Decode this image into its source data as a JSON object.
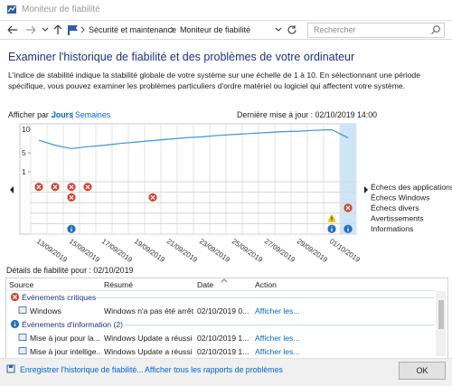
{
  "window": {
    "title": "Moniteur de fiabilité"
  },
  "nav": {
    "breadcrumb": [
      "Sécurité et maintenance",
      "Moniteur de fiabilité"
    ],
    "search_placeholder": "Rechercher"
  },
  "heading": "Examiner l'historique de fiabilité et des problèmes de votre ordinateur",
  "description": "L'indice de stabilité indique la stabilité globale de votre système sur une échelle de 1 à 10. En sélectionnant une période spécifique, vous pouvez examiner les problèmes particuliers d'ordre matériel ou logiciel qui affectent votre système.",
  "view": {
    "label": "Afficher par :",
    "options": [
      "Jours",
      "Semaines"
    ],
    "separator": "|"
  },
  "last_update": "Dernière mise à jour : 02/10/2019 14:00",
  "chart": {
    "ylim": [
      1,
      10
    ],
    "yticks": [
      10,
      5,
      1
    ],
    "days": [
      "13/09/2019",
      null,
      "15/09/2019",
      null,
      "17/09/2019",
      null,
      "19/09/2019",
      null,
      "21/09/2019",
      null,
      "23/09/2019",
      null,
      "25/09/2019",
      null,
      "27/09/2019",
      null,
      "29/09/2019",
      null,
      "01/10/2019",
      null
    ],
    "stability": [
      7.7,
      6.6,
      5.9,
      6.3,
      6.6,
      7.0,
      7.3,
      7.6,
      7.9,
      8.2,
      8.4,
      8.7,
      8.9,
      9.1,
      9.3,
      9.5,
      9.6,
      9.8,
      9.9,
      8.2
    ],
    "rows": [
      {
        "label": "Échecs des applications",
        "icon": "error",
        "counts": [
          1,
          1,
          1,
          1,
          0,
          0,
          0,
          0,
          0,
          0,
          0,
          0,
          0,
          0,
          0,
          0,
          0,
          0,
          0,
          0
        ]
      },
      {
        "label": "Échecs Windows",
        "icon": "error",
        "counts": [
          0,
          0,
          1,
          0,
          0,
          0,
          0,
          1,
          0,
          0,
          0,
          0,
          0,
          0,
          0,
          0,
          0,
          0,
          0,
          0
        ]
      },
      {
        "label": "Échecs divers",
        "icon": "error",
        "counts": [
          0,
          0,
          0,
          0,
          0,
          0,
          0,
          0,
          0,
          0,
          0,
          0,
          0,
          0,
          0,
          0,
          0,
          0,
          0,
          1
        ]
      },
      {
        "label": "Avertissements",
        "icon": "warning",
        "counts": [
          0,
          0,
          0,
          0,
          0,
          0,
          0,
          0,
          0,
          0,
          0,
          0,
          0,
          0,
          0,
          0,
          0,
          0,
          1,
          0
        ]
      },
      {
        "label": "Informations",
        "icon": "info",
        "counts": [
          0,
          0,
          1,
          0,
          0,
          0,
          0,
          0,
          0,
          0,
          0,
          0,
          0,
          0,
          0,
          0,
          0,
          0,
          1,
          1
        ]
      }
    ]
  },
  "details": {
    "title": "Détails de fiabilité pour : 02/10/2019",
    "columns": [
      "Source",
      "Résumé",
      "Date",
      "Action"
    ],
    "groups": [
      {
        "title": "Événements critiques",
        "icon": "error",
        "rows": [
          [
            "Windows",
            "Windows n'a pas été arrêt...",
            "02/10/2019 0...",
            "Afficher les..."
          ]
        ]
      },
      {
        "title": "Événements d'information (2)",
        "icon": "info",
        "rows": [
          [
            "Mise à jour pour la...",
            "Windows Update a réussi",
            "02/10/2019 1...",
            "Afficher les..."
          ],
          [
            "Mise à jour intellige...",
            "Windows Update a réussi",
            "02/10/2019 1...",
            "Afficher les..."
          ]
        ]
      }
    ]
  },
  "footer": {
    "links": [
      "Enregistrer l'historique de fiabilité...",
      "Afficher tous les rapports de problèmes"
    ],
    "button": "OK"
  }
}
